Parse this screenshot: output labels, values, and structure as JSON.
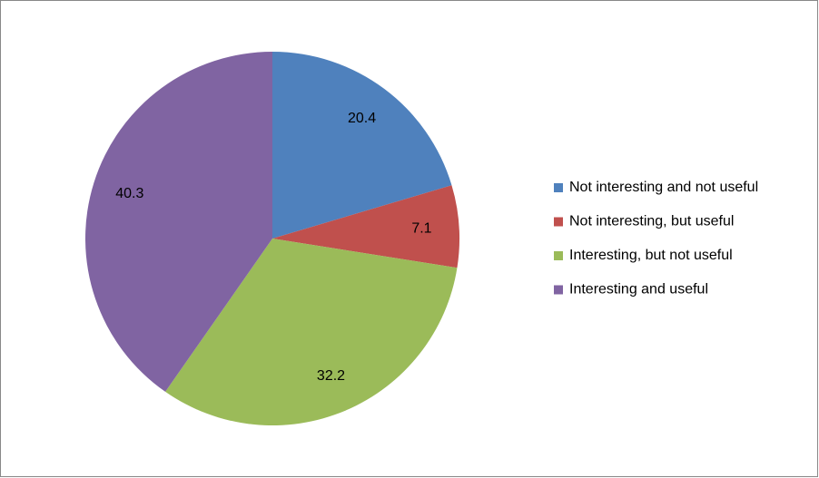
{
  "chart_data": {
    "type": "pie",
    "categories": [
      "Not interesting and not useful",
      "Not interesting, but useful",
      "Interesting, but not useful",
      "Interesting and useful"
    ],
    "values": [
      20.4,
      7.1,
      32.2,
      40.3
    ],
    "colors": [
      "#4f81bd",
      "#c0504d",
      "#9bbb59",
      "#8064a2"
    ],
    "legend": "right"
  }
}
